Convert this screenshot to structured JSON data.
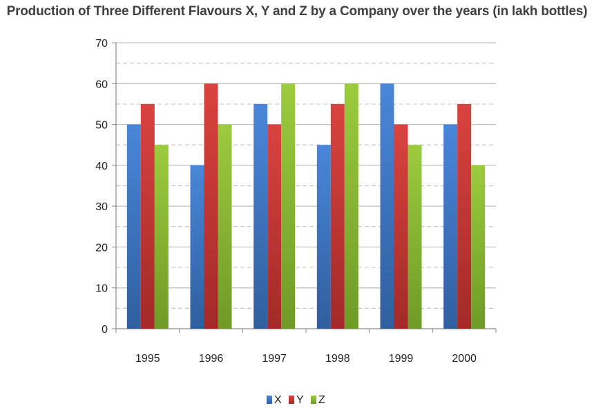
{
  "chart_data": {
    "type": "bar",
    "title": "Production of Three Different Flavours X, Y and Z by a Company over the years (in lakh bottles)",
    "categories": [
      "1995",
      "1996",
      "1997",
      "1998",
      "1999",
      "2000"
    ],
    "series": [
      {
        "name": "X",
        "values": [
          50,
          40,
          55,
          45,
          60,
          50
        ],
        "color": "#3f77c8"
      },
      {
        "name": "Y",
        "values": [
          55,
          60,
          50,
          55,
          50,
          55
        ],
        "color": "#cc3a36"
      },
      {
        "name": "Z",
        "values": [
          45,
          50,
          60,
          60,
          45,
          40
        ],
        "color": "#93bd3a"
      }
    ],
    "ylim": [
      0,
      70
    ],
    "yticks": [
      0,
      10,
      20,
      30,
      40,
      50,
      60,
      70
    ],
    "grid": "major solid, minor dashed",
    "legend": "bottom"
  }
}
